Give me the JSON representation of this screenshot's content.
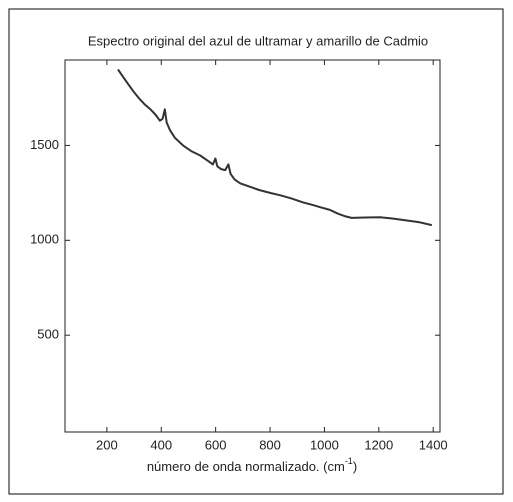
{
  "chart_data": {
    "type": "line",
    "title": "Espectro original del azul de ultramar y amarillo de Cadmio",
    "xlabel": [
      "número de onda normalizado. (cm",
      "-1",
      ")"
    ],
    "x": [
      241,
      260,
      280,
      300,
      320,
      340,
      360,
      380,
      395,
      405,
      413,
      420,
      432,
      450,
      480,
      510,
      543,
      570,
      590,
      599,
      606,
      620,
      635,
      647,
      655,
      670,
      691,
      720,
      760,
      800,
      838,
      880,
      920,
      960,
      986,
      1020,
      1050,
      1078,
      1100,
      1150,
      1207,
      1250,
      1300,
      1350,
      1395
    ],
    "series": [
      {
        "color": "#333333",
        "values": [
          1900,
          1860,
          1820,
          1780,
          1745,
          1715,
          1690,
          1660,
          1630,
          1640,
          1690,
          1620,
          1580,
          1540,
          1500,
          1470,
          1447,
          1420,
          1400,
          1431,
          1390,
          1375,
          1370,
          1400,
          1350,
          1320,
          1300,
          1285,
          1265,
          1250,
          1237,
          1220,
          1200,
          1185,
          1174,
          1160,
          1140,
          1126,
          1118,
          1120,
          1121,
          1115,
          1105,
          1095,
          1080
        ]
      }
    ],
    "xlim": [
      46,
      1425
    ],
    "ylim": [
      -10,
      1950
    ],
    "xticks": [
      200,
      400,
      600,
      800,
      1000,
      1200,
      1400
    ],
    "yticks": [
      500,
      1000,
      1500
    ]
  }
}
